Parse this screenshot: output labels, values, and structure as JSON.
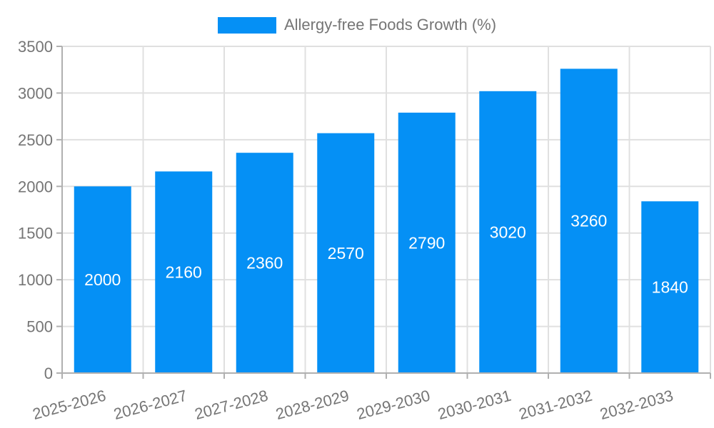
{
  "legend": {
    "label": "Allergy-free Foods Growth (%)"
  },
  "colors": {
    "bar": "#0590f5",
    "grid": "#e0e0e0",
    "axis": "#b0b0b0",
    "tick_text": "#757575",
    "value_label": "#ffffff",
    "background": "#ffffff"
  },
  "chart_data": {
    "type": "bar",
    "title": "Allergy-free Foods Growth (%)",
    "categories": [
      "2025-2026",
      "2026-2027",
      "2027-2028",
      "2028-2029",
      "2029-2030",
      "2030-2031",
      "2031-2032",
      "2032-2033"
    ],
    "values": [
      2000,
      2160,
      2360,
      2570,
      2790,
      3020,
      3260,
      1840
    ],
    "value_labels": [
      "2000",
      "2160",
      "2360",
      "2570",
      "2790",
      "3020",
      "3260",
      "1840"
    ],
    "xlabel": "",
    "ylabel": "",
    "ylim": [
      0,
      3500
    ],
    "yticks": [
      0,
      500,
      1000,
      1500,
      2000,
      2500,
      3000,
      3500
    ],
    "ytick_labels": [
      "0",
      "500",
      "1000",
      "1500",
      "2000",
      "2500",
      "3000",
      "3500"
    ],
    "grid": true,
    "legend_position": "top",
    "x_label_rotation_deg": -15
  }
}
